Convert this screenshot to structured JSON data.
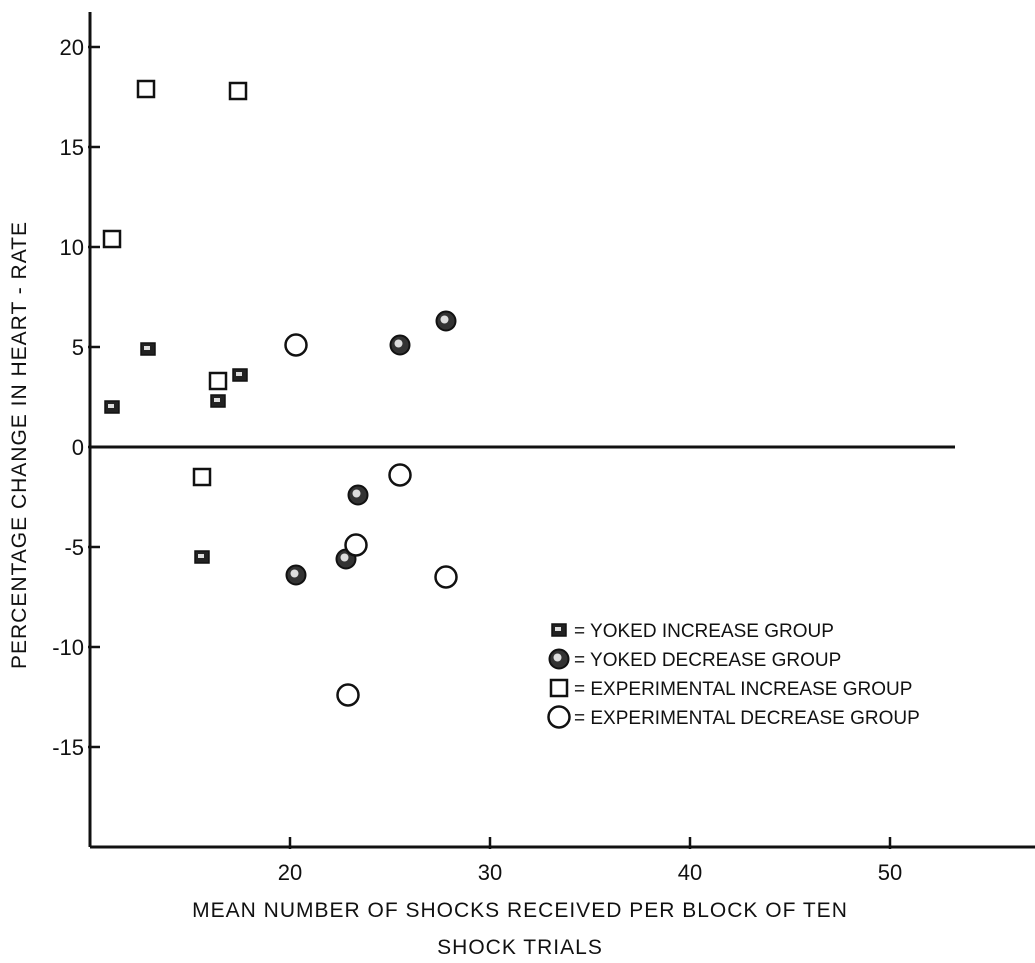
{
  "chart_data": {
    "type": "scatter",
    "title": "",
    "xlabel_line1": "MEAN NUMBER OF SHOCKS RECEIVED PER BLOCK OF TEN",
    "xlabel_line2": "SHOCK TRIALS",
    "ylabel": "PERCENTAGE CHANGE IN HEART - RATE",
    "xlim": [
      10.2,
      56
    ],
    "ylim": [
      -20,
      22
    ],
    "x_ticks": [
      20,
      30,
      40,
      50
    ],
    "y_ticks": [
      20,
      15,
      10,
      5,
      0,
      -5,
      -10,
      -15
    ],
    "x_tick_labels": [
      "20",
      "30",
      "40",
      "50"
    ],
    "y_tick_labels": [
      "20",
      "15",
      "10",
      "5",
      "0",
      "-5",
      "-10",
      "-15"
    ],
    "zero_line": true,
    "grid": false,
    "legend_position": "lower-right",
    "series": [
      {
        "name": "= YOKED INCREASE GROUP",
        "marker": "filled-square",
        "points": [
          {
            "x": 11.1,
            "y": 2.0
          },
          {
            "x": 12.9,
            "y": 4.9
          },
          {
            "x": 16.4,
            "y": 2.3
          },
          {
            "x": 17.5,
            "y": 3.6
          },
          {
            "x": 15.6,
            "y": -5.5
          }
        ]
      },
      {
        "name": "= YOKED DECREASE GROUP",
        "marker": "filled-circle",
        "points": [
          {
            "x": 25.5,
            "y": 5.1
          },
          {
            "x": 27.8,
            "y": 6.3
          },
          {
            "x": 23.4,
            "y": -2.4
          },
          {
            "x": 20.3,
            "y": -6.4
          },
          {
            "x": 22.8,
            "y": -5.6
          }
        ]
      },
      {
        "name": "= EXPERIMENTAL INCREASE GROUP",
        "marker": "open-square",
        "points": [
          {
            "x": 12.8,
            "y": 17.9
          },
          {
            "x": 17.4,
            "y": 17.8
          },
          {
            "x": 11.1,
            "y": 10.4
          },
          {
            "x": 16.4,
            "y": 3.3
          },
          {
            "x": 15.6,
            "y": -1.5
          }
        ]
      },
      {
        "name": "= EXPERIMENTAL DECREASE GROUP",
        "marker": "open-circle",
        "points": [
          {
            "x": 20.3,
            "y": 5.1
          },
          {
            "x": 25.5,
            "y": -1.4
          },
          {
            "x": 23.3,
            "y": -4.9
          },
          {
            "x": 27.8,
            "y": -6.5
          },
          {
            "x": 22.9,
            "y": -12.4
          }
        ]
      }
    ]
  }
}
